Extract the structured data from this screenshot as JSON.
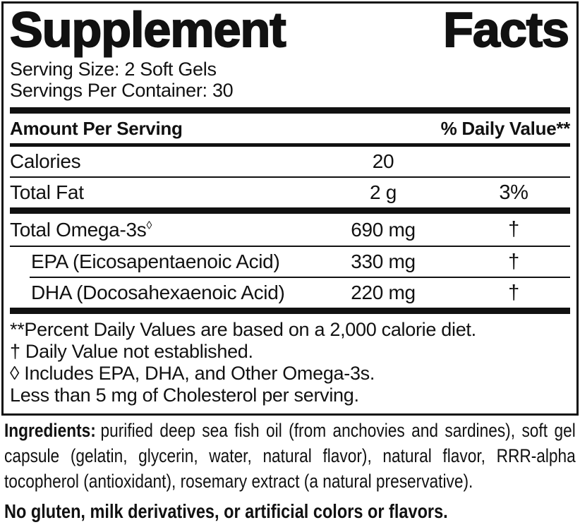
{
  "panel": {
    "title_left": "Supplement",
    "title_right": "Facts",
    "serving_size": "Serving Size: 2 Soft Gels",
    "servings_per_container": "Servings Per Container: 30",
    "columns": {
      "amount_header": "Amount Per Serving",
      "dv_header": "% Daily Value**"
    },
    "rows": [
      {
        "name": "Calories",
        "amount": "20",
        "dv": ""
      },
      {
        "name": "Total Fat",
        "amount": "2 g",
        "dv": "3%"
      },
      {
        "name": "Total Omega-3s",
        "name_mark": "◊",
        "amount": "690 mg",
        "dv": "†"
      },
      {
        "name": "EPA (Eicosapentaenoic Acid)",
        "amount": "330 mg",
        "dv": "†"
      },
      {
        "name": "DHA (Docosahexaenoic Acid)",
        "amount": "220 mg",
        "dv": "†"
      }
    ],
    "footnotes": [
      "**Percent Daily Values are based on a 2,000 calorie diet.",
      "† Daily Value not established.",
      "◊ Includes EPA, DHA, and Other Omega-3s.",
      "Less than 5 mg of Cholesterol per serving."
    ]
  },
  "ingredients": {
    "label": "Ingredients:",
    "text": "purified deep sea fish oil (from anchovies and sardines), soft gel capsule (gelatin, glycerin, water, natural flavor), natural flavor, RRR-alpha tocopherol (antioxidant), rosemary extract (a natural preservative)."
  },
  "allergen_statement": "No gluten, milk derivatives, or artificial colors or flavors.",
  "colors": {
    "ink": "#111111",
    "background": "#ffffff"
  }
}
